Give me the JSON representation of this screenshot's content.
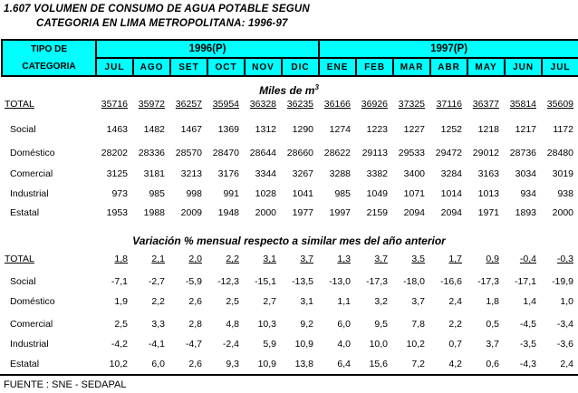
{
  "title": {
    "line1": "1.607 VOLUMEN DE CONSUMO DE AGUA POTABLE SEGUN",
    "line2": "CATEGORIA EN LIMA METROPOLITANA: 1996-97"
  },
  "header": {
    "category_line1": "TIPO DE",
    "category_line2": "CATEGORIA",
    "year_groups": [
      {
        "label": "1996(P)",
        "months_span": 6
      },
      {
        "label": "1997(P)",
        "months_span": 7
      }
    ],
    "months": [
      "JUL",
      "AGO",
      "SET",
      "OCT",
      "NOV",
      "DIC",
      "ENE",
      "FEB",
      "MAR",
      "ABR",
      "MAY",
      "JUN",
      "JUL"
    ]
  },
  "sections": [
    {
      "title": "Miles de m",
      "title_superscript": "3",
      "rows": [
        {
          "label": "TOTAL",
          "underline": true,
          "values": [
            "35716",
            "35972",
            "36257",
            "35954",
            "36328",
            "36235",
            "36166",
            "36926",
            "37325",
            "37116",
            "36377",
            "35814",
            "35609"
          ]
        },
        {
          "label": "Social",
          "underline": false,
          "values": [
            "1463",
            "1482",
            "1467",
            "1369",
            "1312",
            "1290",
            "1274",
            "1223",
            "1227",
            "1252",
            "1218",
            "1217",
            "1172"
          ]
        },
        {
          "label": "Doméstico",
          "underline": false,
          "values": [
            "28202",
            "28336",
            "28570",
            "28470",
            "28644",
            "28660",
            "28622",
            "29113",
            "29533",
            "29472",
            "29012",
            "28736",
            "28480"
          ]
        },
        {
          "label": "Comercial",
          "underline": false,
          "values": [
            "3125",
            "3181",
            "3213",
            "3176",
            "3344",
            "3267",
            "3288",
            "3382",
            "3400",
            "3284",
            "3163",
            "3034",
            "3019"
          ]
        },
        {
          "label": "Industrial",
          "underline": false,
          "values": [
            "973",
            "985",
            "998",
            "991",
            "1028",
            "1041",
            "985",
            "1049",
            "1071",
            "1014",
            "1013",
            "934",
            "938"
          ]
        },
        {
          "label": "Estatal",
          "underline": false,
          "values": [
            "1953",
            "1988",
            "2009",
            "1948",
            "2000",
            "1977",
            "1997",
            "2159",
            "2094",
            "2094",
            "1971",
            "1893",
            "2000"
          ]
        }
      ]
    },
    {
      "title": "Variación % mensual respecto a similar mes del año anterior",
      "title_superscript": "",
      "rows": [
        {
          "label": "TOTAL",
          "underline": true,
          "values": [
            "1,8",
            "2,1",
            "2,0",
            "2,2",
            "3,1",
            "3,7",
            "1,3",
            "3,7",
            "3,5",
            "1,7",
            "0,9",
            "-0,4",
            "-0,3"
          ]
        },
        {
          "label": "Social",
          "underline": false,
          "values": [
            "-7,1",
            "-2,7",
            "-5,9",
            "-12,3",
            "-15,1",
            "-13,5",
            "-13,0",
            "-17,3",
            "-18,0",
            "-16,6",
            "-17,3",
            "-17,1",
            "-19,9"
          ]
        },
        {
          "label": "Doméstico",
          "underline": false,
          "values": [
            "1,9",
            "2,2",
            "2,6",
            "2,5",
            "2,7",
            "3,1",
            "1,1",
            "3,2",
            "3,7",
            "2,4",
            "1,8",
            "1,4",
            "1,0"
          ]
        },
        {
          "label": "Comercial",
          "underline": false,
          "values": [
            "2,5",
            "3,3",
            "2,8",
            "4,8",
            "10,3",
            "9,2",
            "6,0",
            "9,5",
            "7,8",
            "2,2",
            "0,5",
            "-4,5",
            "-3,4"
          ]
        },
        {
          "label": "Industrial",
          "underline": false,
          "values": [
            "-4,2",
            "-4,1",
            "-4,7",
            "-2,4",
            "5,9",
            "10,9",
            "4,0",
            "10,0",
            "10,2",
            "0,7",
            "3,7",
            "-3,5",
            "-3,6"
          ]
        },
        {
          "label": "Estatal",
          "underline": false,
          "values": [
            "10,2",
            "6,0",
            "2,6",
            "9,3",
            "10,9",
            "13,8",
            "6,4",
            "15,6",
            "7,2",
            "4,2",
            "0,6",
            "-4,3",
            "2,4"
          ]
        }
      ]
    }
  ],
  "footer": {
    "source": "FUENTE : SNE - SEDAPAL"
  },
  "colors": {
    "header_bg": "#00ffff",
    "border": "#000000",
    "text": "#000000"
  }
}
